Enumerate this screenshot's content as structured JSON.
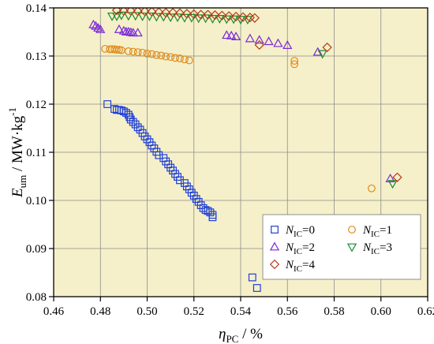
{
  "chart_data": {
    "type": "scatter",
    "xlabel": {
      "main": "η",
      "sub": "PC",
      "unit": " / %"
    },
    "ylabel": {
      "main": "E",
      "sub": "um",
      "unit": " / MW·kg",
      "sup": "-1"
    },
    "xlim": [
      0.46,
      0.62
    ],
    "ylim": [
      0.08,
      0.14
    ],
    "xticks": [
      "0.46",
      "0.48",
      "0.50",
      "0.52",
      "0.54",
      "0.56",
      "0.58",
      "0.60",
      "0.62"
    ],
    "yticks": [
      "0.08",
      "0.09",
      "0.10",
      "0.11",
      "0.12",
      "0.13",
      "0.14"
    ],
    "grid": true,
    "background": "#f5f0c9",
    "legend_position": "bottom-right",
    "series": [
      {
        "name": "N",
        "name_sub": "IC",
        "name_suffix": "=0",
        "marker": "square",
        "color": "#1f3fd6",
        "points": [
          [
            0.483,
            0.12
          ],
          [
            0.486,
            0.119
          ],
          [
            0.487,
            0.1188
          ],
          [
            0.488,
            0.1188
          ],
          [
            0.489,
            0.1187
          ],
          [
            0.49,
            0.1185
          ],
          [
            0.491,
            0.1182
          ],
          [
            0.492,
            0.1178
          ],
          [
            0.4925,
            0.1173
          ],
          [
            0.493,
            0.1168
          ],
          [
            0.494,
            0.1163
          ],
          [
            0.495,
            0.1158
          ],
          [
            0.496,
            0.1152
          ],
          [
            0.497,
            0.1147
          ],
          [
            0.498,
            0.114
          ],
          [
            0.499,
            0.1133
          ],
          [
            0.5,
            0.1127
          ],
          [
            0.501,
            0.1121
          ],
          [
            0.502,
            0.1114
          ],
          [
            0.503,
            0.1108
          ],
          [
            0.504,
            0.1101
          ],
          [
            0.505,
            0.1094
          ],
          [
            0.507,
            0.1088
          ],
          [
            0.508,
            0.1081
          ],
          [
            0.509,
            0.1075
          ],
          [
            0.51,
            0.1068
          ],
          [
            0.511,
            0.1062
          ],
          [
            0.512,
            0.1055
          ],
          [
            0.513,
            0.1049
          ],
          [
            0.514,
            0.1042
          ],
          [
            0.516,
            0.1036
          ],
          [
            0.517,
            0.1029
          ],
          [
            0.518,
            0.1023
          ],
          [
            0.519,
            0.1016
          ],
          [
            0.52,
            0.101
          ],
          [
            0.521,
            0.1003
          ],
          [
            0.522,
            0.0997
          ],
          [
            0.523,
            0.099
          ],
          [
            0.524,
            0.0984
          ],
          [
            0.525,
            0.098
          ],
          [
            0.526,
            0.0978
          ],
          [
            0.527,
            0.0975
          ],
          [
            0.528,
            0.097
          ],
          [
            0.528,
            0.0965
          ],
          [
            0.545,
            0.084
          ],
          [
            0.547,
            0.0818
          ]
        ]
      },
      {
        "name": "N",
        "name_sub": "IC",
        "name_suffix": "=1",
        "marker": "circle",
        "color": "#e08a1a",
        "points": [
          [
            0.482,
            0.1315
          ],
          [
            0.484,
            0.1314
          ],
          [
            0.485,
            0.1314
          ],
          [
            0.486,
            0.1314
          ],
          [
            0.487,
            0.1313
          ],
          [
            0.488,
            0.1313
          ],
          [
            0.489,
            0.1312
          ],
          [
            0.492,
            0.131
          ],
          [
            0.494,
            0.1309
          ],
          [
            0.496,
            0.1308
          ],
          [
            0.498,
            0.1307
          ],
          [
            0.5,
            0.1305
          ],
          [
            0.502,
            0.1304
          ],
          [
            0.504,
            0.1302
          ],
          [
            0.506,
            0.1301
          ],
          [
            0.508,
            0.1299
          ],
          [
            0.51,
            0.1298
          ],
          [
            0.512,
            0.1296
          ],
          [
            0.514,
            0.1295
          ],
          [
            0.516,
            0.1293
          ],
          [
            0.518,
            0.1291
          ],
          [
            0.563,
            0.129
          ],
          [
            0.563,
            0.1283
          ],
          [
            0.596,
            0.1025
          ]
        ]
      },
      {
        "name": "N",
        "name_sub": "IC",
        "name_suffix": "=2",
        "marker": "triangle-up",
        "color": "#7a28d8",
        "points": [
          [
            0.477,
            0.1365
          ],
          [
            0.478,
            0.1362
          ],
          [
            0.479,
            0.1358
          ],
          [
            0.48,
            0.1355
          ],
          [
            0.488,
            0.1355
          ],
          [
            0.49,
            0.1352
          ],
          [
            0.491,
            0.135
          ],
          [
            0.492,
            0.135
          ],
          [
            0.493,
            0.1349
          ],
          [
            0.494,
            0.1348
          ],
          [
            0.496,
            0.1348
          ],
          [
            0.534,
            0.1343
          ],
          [
            0.536,
            0.1342
          ],
          [
            0.538,
            0.134
          ],
          [
            0.544,
            0.1336
          ],
          [
            0.548,
            0.1333
          ],
          [
            0.552,
            0.133
          ],
          [
            0.556,
            0.1326
          ],
          [
            0.56,
            0.1322
          ],
          [
            0.573,
            0.1308
          ],
          [
            0.604,
            0.1045
          ]
        ]
      },
      {
        "name": "N",
        "name_sub": "IC",
        "name_suffix": "=3",
        "marker": "triangle-down",
        "color": "#1a8a2e",
        "points": [
          [
            0.485,
            0.1383
          ],
          [
            0.487,
            0.1383
          ],
          [
            0.489,
            0.1385
          ],
          [
            0.492,
            0.1384
          ],
          [
            0.495,
            0.1384
          ],
          [
            0.498,
            0.1383
          ],
          [
            0.501,
            0.1383
          ],
          [
            0.504,
            0.1382
          ],
          [
            0.507,
            0.1382
          ],
          [
            0.51,
            0.1381
          ],
          [
            0.513,
            0.1381
          ],
          [
            0.516,
            0.138
          ],
          [
            0.519,
            0.138
          ],
          [
            0.522,
            0.1379
          ],
          [
            0.525,
            0.1379
          ],
          [
            0.528,
            0.1378
          ],
          [
            0.531,
            0.1378
          ],
          [
            0.534,
            0.1377
          ],
          [
            0.537,
            0.1377
          ],
          [
            0.54,
            0.1376
          ],
          [
            0.543,
            0.1376
          ],
          [
            0.575,
            0.1305
          ],
          [
            0.605,
            0.1035
          ]
        ]
      },
      {
        "name": "N",
        "name_sub": "IC",
        "name_suffix": "=4",
        "marker": "diamond",
        "color": "#b53a1a",
        "points": [
          [
            0.487,
            0.1395
          ],
          [
            0.49,
            0.1394
          ],
          [
            0.493,
            0.1394
          ],
          [
            0.496,
            0.1393
          ],
          [
            0.499,
            0.1393
          ],
          [
            0.502,
            0.1392
          ],
          [
            0.505,
            0.1391
          ],
          [
            0.508,
            0.139
          ],
          [
            0.511,
            0.139
          ],
          [
            0.514,
            0.1389
          ],
          [
            0.517,
            0.1388
          ],
          [
            0.52,
            0.1387
          ],
          [
            0.523,
            0.1386
          ],
          [
            0.526,
            0.1386
          ],
          [
            0.529,
            0.1385
          ],
          [
            0.532,
            0.1384
          ],
          [
            0.535,
            0.1383
          ],
          [
            0.538,
            0.1382
          ],
          [
            0.541,
            0.1381
          ],
          [
            0.544,
            0.138
          ],
          [
            0.546,
            0.1379
          ],
          [
            0.548,
            0.1323
          ],
          [
            0.577,
            0.1318
          ],
          [
            0.607,
            0.1048
          ]
        ]
      }
    ]
  }
}
